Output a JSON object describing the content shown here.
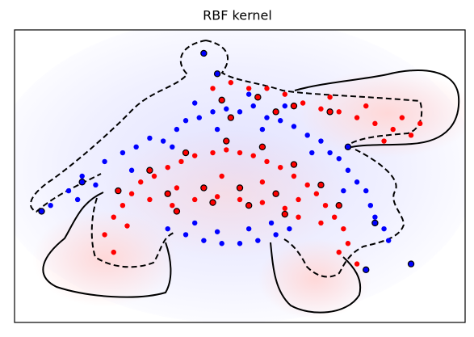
{
  "chart_data": {
    "type": "scatter",
    "title": "RBF kernel",
    "xlim": [
      0,
      100
    ],
    "ylim": [
      0,
      100
    ],
    "series": [
      {
        "color": "#0000ff",
        "x": [
          8,
          12,
          15,
          18,
          20,
          24,
          27,
          30,
          33,
          36,
          38,
          41,
          44,
          47,
          50,
          53,
          56,
          59,
          62,
          65,
          68,
          70,
          72,
          74,
          76,
          78,
          79,
          80,
          82,
          83,
          26,
          35,
          45,
          55,
          66,
          73,
          40,
          52,
          60,
          14,
          34,
          38,
          42,
          46,
          50,
          54,
          58,
          61,
          40,
          52,
          45,
          57
        ],
        "y": [
          40,
          45,
          50,
          47,
          55,
          58,
          60,
          63,
          62,
          66,
          69,
          70,
          72,
          73,
          72,
          74,
          70,
          69,
          67,
          64,
          62,
          58,
          56,
          52,
          48,
          45,
          40,
          36,
          32,
          28,
          52,
          60,
          66,
          66,
          58,
          45,
          75,
          78,
          74,
          42,
          32,
          30,
          28,
          27,
          27,
          28,
          30,
          32,
          34,
          32,
          31,
          34
        ]
      },
      {
        "color": "#ff0000",
        "x": [
          20,
          22,
          24,
          26,
          28,
          31,
          34,
          37,
          40,
          44,
          47,
          50,
          53,
          56,
          59,
          62,
          65,
          67,
          69,
          71,
          73,
          74,
          22,
          25,
          30,
          36,
          46,
          55,
          63,
          68,
          72,
          76,
          44,
          48,
          52,
          56,
          60,
          64,
          68,
          72,
          76,
          80,
          84,
          88,
          90,
          86,
          78,
          70,
          82,
          35,
          40,
          45,
          50,
          55,
          60,
          63
        ],
        "y": [
          30,
          36,
          40,
          44,
          48,
          50,
          53,
          55,
          57,
          58,
          59,
          58,
          57,
          55,
          53,
          50,
          47,
          44,
          40,
          36,
          32,
          27,
          24,
          33,
          42,
          46,
          50,
          48,
          42,
          34,
          24,
          20,
          80,
          82,
          80,
          80,
          78,
          75,
          73,
          72,
          70,
          68,
          66,
          64,
          68,
          70,
          74,
          77,
          62,
          40,
          42,
          43,
          42,
          41,
          39,
          36
        ]
      },
      {
        "color": "#ff0000",
        "edgecolor": "#000000",
        "x": [
          23,
          30,
          38,
          47,
          55,
          62,
          68,
          72,
          34,
          42,
          50,
          58,
          36,
          44,
          52,
          60,
          46,
          54,
          62,
          70,
          48,
          58
        ],
        "y": [
          45,
          52,
          58,
          62,
          60,
          54,
          47,
          40,
          44,
          46,
          46,
          44,
          38,
          41,
          40,
          37,
          76,
          77,
          74,
          72,
          70,
          72
        ]
      },
      {
        "color": "#0000ff",
        "edgecolor": "#000000",
        "x": [
          6,
          15,
          42,
          80,
          88,
          78,
          45,
          74
        ],
        "y": [
          38,
          48,
          92,
          34,
          20,
          18,
          85,
          60
        ]
      }
    ]
  }
}
